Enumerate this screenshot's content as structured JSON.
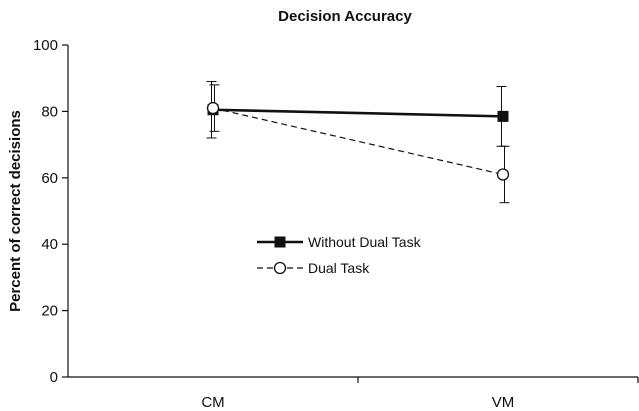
{
  "chart_data": {
    "type": "line",
    "title": "Decision Accuracy",
    "xlabel": "",
    "ylabel": "Percent of correct decisions",
    "categories": [
      "CM",
      "VM"
    ],
    "ylim": [
      0,
      100
    ],
    "yticks": [
      0,
      20,
      40,
      60,
      80,
      100
    ],
    "grid": false,
    "legend_position": "center",
    "series": [
      {
        "name": "Without Dual Task",
        "values": [
          80.5,
          78.5
        ],
        "error": [
          8.5,
          9
        ],
        "marker": "filled-square",
        "line_style": "solid",
        "color": "#111111"
      },
      {
        "name": "Dual Task",
        "values": [
          81,
          61
        ],
        "error": [
          7,
          8.5
        ],
        "marker": "open-circle",
        "line_style": "dashed",
        "color": "#111111"
      }
    ]
  }
}
